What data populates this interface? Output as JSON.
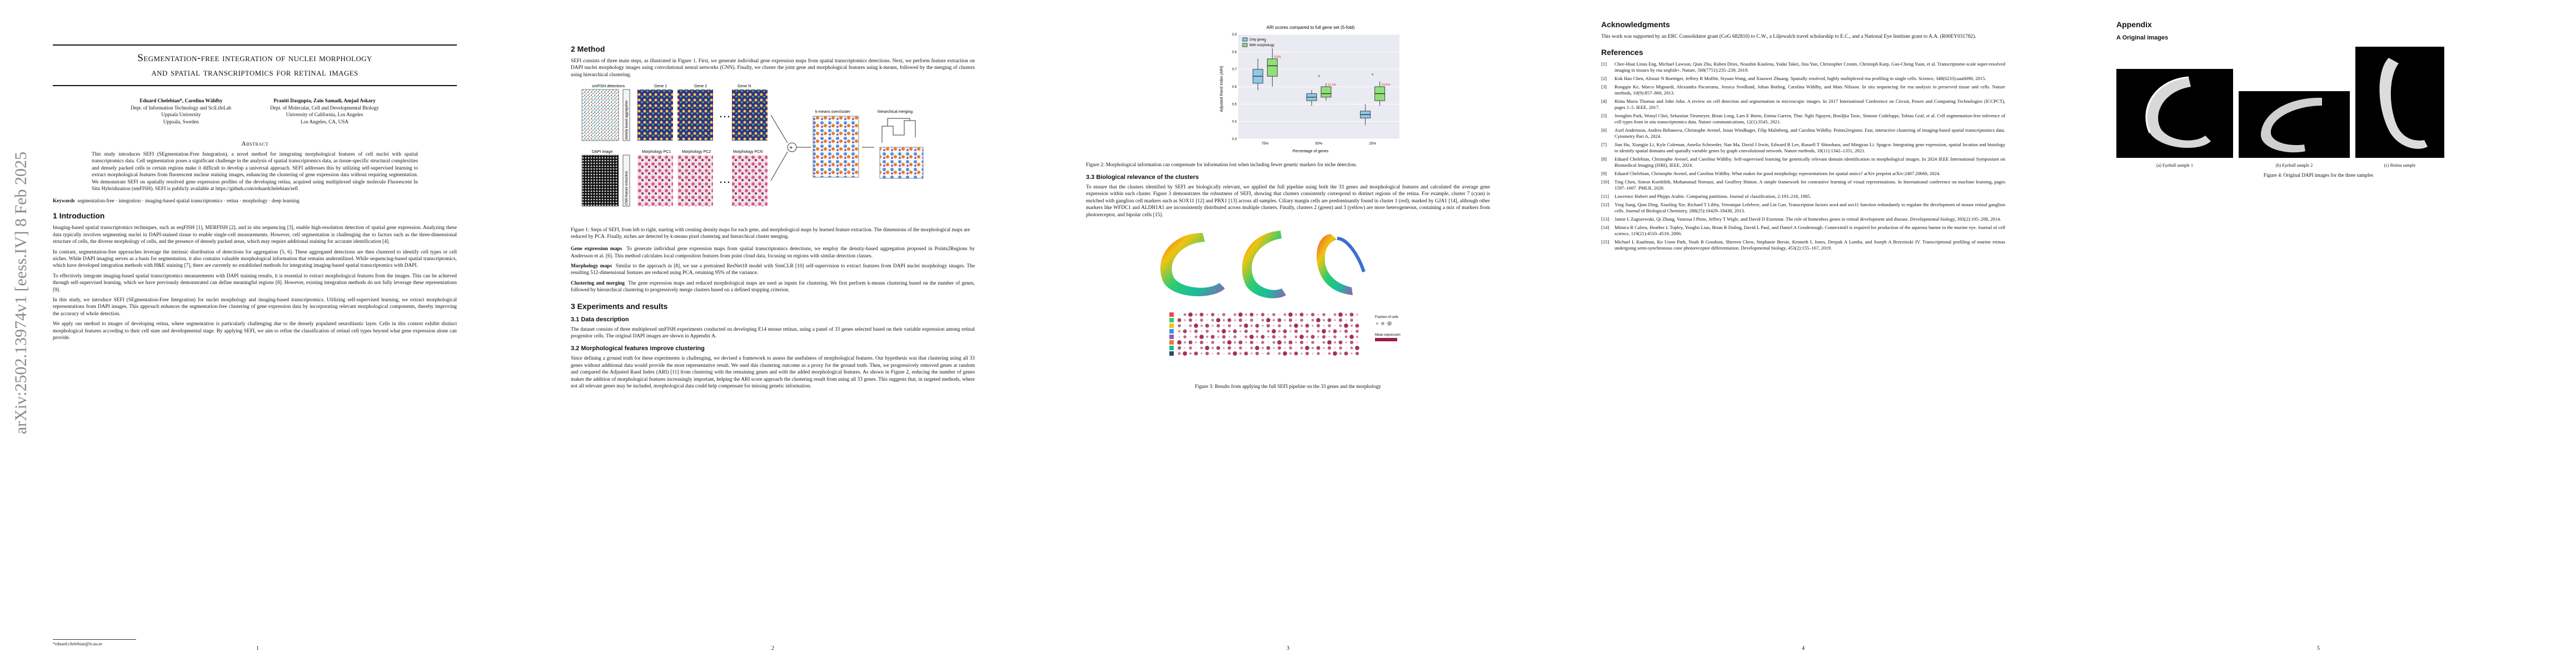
{
  "arxiv_stamp": "arXiv:2502.13974v1  [eess.IV]  8 Feb 2025",
  "title_line1": "Segmentation-free integration of nuclei morphology",
  "title_line2": "and spatial transcriptomics for retinal images",
  "authors": [
    {
      "names": "Eduard Chelebian*, Carolina Wählby",
      "affil1": "Dept. of Information Technology and SciLifeLab",
      "affil2": "Uppsala University",
      "affil3": "Uppsala, Sweden"
    },
    {
      "names": "Praniti Dasgupta, Zain Samadi, Amjad Askary",
      "affil1": "Dept. of Molecular, Cell and Developmental Biology",
      "affil2": "University of California, Los Angeles",
      "affil3": "Los Angeles, CA, USA"
    }
  ],
  "abstract_heading": "Abstract",
  "abstract": "This study introduces SEFI (SEgmentation-Free Integration), a novel method for integrating morphological features of cell nuclei with spatial transcriptomics data. Cell segmentation poses a significant challenge in the analysis of spatial transcriptomics data, as tissue-specific structural complexities and densely packed cells in certain regions make it difficult to develop a universal approach. SEFI addresses this by utilizing self-supervised learning to extract morphological features from fluorescent nuclear staining images, enhancing the clustering of gene expression data without requiring segmentation. We demonstrate SEFI on spatially resolved gene expression profiles of the developing retina, acquired using multiplexed single molecule Fluorescent In Situ Hybridization (smFISH). SEFI is publicly available at https://github.com/eduardchelebian/sefi",
  "keywords_label": "Keywords",
  "keywords": "segmentation-free · integration · imaging-based spatial transcriptomics · retina · morphology · deep learning",
  "sec1_title": "1   Introduction",
  "intro": [
    "Imaging-based spatial transcriptomics techniques, such as seqFISH [1], MERFISH [2], and in situ sequencing [3], enable high-resolution detection of spatial gene expression. Analyzing these data typically involves segmenting nuclei in DAPI-stained tissue to enable single-cell measurements. However, cell segmentation is challenging due to factors such as the three-dimensional structure of cells, the diverse morphology of cells, and the presence of densely packed areas, which may require additional staining for accurate identification [4].",
    "In contrast, segmentation-free approaches leverage the intrinsic distribution of detections for aggregation [5, 6]. These aggregated detections are then clustered to identify cell types or cell niches. While DAPI imaging serves as a basis for segmentation, it also contains valuable morphological information that remains underutilized. While sequencing-based spatial transcriptomics, which have developed integration methods with H&E staining [7], there are currently no established methods for integrating imaging-based spatial transcriptomics with DAPI.",
    "To effectively integrate imaging-based spatial transcriptomics measurements with DAPI staining results, it is essential to extract morphological features from the images. This can be achieved through self-supervised learning, which we have previously demonstrated can define meaningful regions [8]. However, existing integration methods do not fully leverage these representations [9].",
    "In this study, we introduce SEFI (SEgmentation-Free Integration) for nuclei morphology and imaging-based transcriptomics. Utilizing self-supervised learning, we extract morphological representations from DAPI images. This approach enhances the segmentation-free clustering of gene expression data by incorporating relevant morphological components, thereby improving the accuracy of whole detection.",
    "We apply our method to images of developing retina, where segmentation is particularly challenging due to the densely populated neuroblastic layer. Cells in this context exhibit distinct morphological features according to their cell state and developmental stage. By applying SEFI, we aim to refine the classification of retinal cell types beyond what gene expression alone can provide."
  ],
  "footnote": "*eduard.chelebian@it.uu.se",
  "page_numbers": [
    "1",
    "2",
    "3",
    "4",
    "5"
  ],
  "sec2_title": "2   Method",
  "method_intro": "SEFI consists of three main steps, as illustrated in Figure 1. First, we generate individual gene expression maps from spatial transcriptomics detections. Next, we perform feature extraction on DAPI nuclei morphology images using convolutional neural networks (CNN). Finally, we cluster the joint gene and morphological features using k-means, followed by the merging of clusters using hierarchical clustering.",
  "fig1": {
    "labels": [
      "smFISH detections",
      "Gene 1",
      "Gene 2",
      "Gene N",
      "DAPI image",
      "Morphology PC1",
      "Morphology PC2",
      "Morphology PCN",
      "k-means overcluster",
      "hierarchical merging",
      "density based aggregation",
      "CNN feature extraction"
    ],
    "caption": "Figure 1: Steps of SEFI, from left to right, starting with creating density maps for each gene, and morphological maps by learned feature extraction. The dimensions of the morphological maps are reduced by PCA. Finally, niches are detected by k-means pixel clustering and hierarchical cluster merging."
  },
  "method_paras": [
    {
      "lead": "Gene expression maps",
      "text": "To generate individual gene expression maps from spatial transcriptomics detections, we employ the density-based aggregation proposed in Points2Regions by Andersson et al. [6]. This method calculates local composition features from point cloud data, focusing on regions with similar detection classes."
    },
    {
      "lead": "Morphology maps",
      "text": "Similar to the approach in [8], we use a pretrained ResNet18 model with SimCLR [10] self-supervision to extract features from DAPI nuclei morphology images. The resulting 512-dimensional features are reduced using PCA, retaining 95% of the variance."
    },
    {
      "lead": "Clustering and merging",
      "text": "The gene expression maps and reduced morphological maps are used as inputs for clustering. We first perform k-means clustering based on the number of genes, followed by hierarchical clustering to progressively merge clusters based on a defined stopping criterion."
    }
  ],
  "sec3_title": "3   Experiments and results",
  "sec31_title": "3.1   Data description",
  "data_desc": "The dataset consists of three multiplexed smFISH experiments conducted on developing E14 mouse retinas, using a panel of 33 genes selected based on their variable expression among retinal progenitor cells. The original DAPI images are shown in Appendix A.",
  "sec32_title": "3.2   Morphological features improve clustering",
  "morph_improve": "Since defining a ground truth for these experiments is challenging, we devised a framework to assess the usefulness of morphological features. Our hypothesis was that clustering using all 33 genes without additional data would provide the most representative result. We used this clustering outcome as a proxy for the ground truth. Then, we progressively removed genes at random and compared the Adjusted Rand Index (ARI) [11] from clustering with the remaining genes and with the added morphological features. As shown in Figure 2, reducing the number of genes makes the addition of morphological features increasingly important, helping the ARI score approach the clustering result from using all 33 genes. This suggests that, in targeted methods, where not all relevant genes may be included, morphological data could help compensate for missing genetic information.",
  "chart_data": {
    "type": "box",
    "title": "ARI scores compared to full gene set (5-fold)",
    "xlabel": "Percentage of genes",
    "ylabel": "Adjusted Rand Index (ARI)",
    "categories": [
      "75%",
      "50%",
      "25%"
    ],
    "ylim": [
      0.3,
      0.9
    ],
    "yticks": [
      0.3,
      0.4,
      0.5,
      0.6,
      0.7,
      0.8,
      0.9
    ],
    "legend": [
      "Only genes",
      "With morphology"
    ],
    "series": [
      {
        "name": "Only genes",
        "color": "#8ecae6",
        "boxes": [
          {
            "min": 0.58,
            "q1": 0.62,
            "median": 0.66,
            "q3": 0.7,
            "max": 0.76
          },
          {
            "min": 0.49,
            "q1": 0.52,
            "median": 0.54,
            "q3": 0.56,
            "max": 0.58
          },
          {
            "min": 0.38,
            "q1": 0.42,
            "median": 0.44,
            "q3": 0.46,
            "max": 0.5
          }
        ]
      },
      {
        "name": "With morphology",
        "color": "#90e07a",
        "boxes": [
          {
            "min": 0.6,
            "q1": 0.66,
            "median": 0.72,
            "q3": 0.76,
            "max": 0.82
          },
          {
            "min": 0.52,
            "q1": 0.54,
            "median": 0.56,
            "q3": 0.6,
            "max": 0.62
          },
          {
            "min": 0.49,
            "q1": 0.52,
            "median": 0.56,
            "q3": 0.6,
            "max": 0.63
          }
        ]
      }
    ],
    "annotations": [
      "*",
      "*",
      "*",
      "9.6%",
      "11.1%",
      "23.5%"
    ]
  },
  "fig2_caption": "Figure 2: Morphological information can compensate for information lost when including fewer genetic markers for niche detection.",
  "sec33_title": "3.3   Biological relevance of the clusters",
  "bio_relevance": "To ensure that the clusters identified by SEFI are biologically relevant, we applied the full pipeline using both the 33 genes and morphological features and calculated the average gene expression within each cluster. Figure 3 demonstrates the robustness of SEFI, showing that clusters consistently correspond to distinct regions of the retina. For example, cluster 7 (cyan) is enriched with ganglion cell markers such as SOX11 [12] and PBX1 [13] across all samples. Ciliary margin cells are predominantly found in cluster 1 (red), marked by GJA1 [14], although other markers like WFDC1 and ALDH1A1 are inconsistently distributed across multiple clusters. Finally, clusters 2 (green) and 3 (yellow) are more heterogeneous, containing a mix of markers from photoreceptor, and bipolar cells [15].",
  "fig3_caption": "Figure 3: Results from applying the full SEFI pipeline on the 33 genes and the morphology",
  "fig3_legend_title": "Fraction of cells",
  "fig3_legend2_title": "Mean expression",
  "ack_title": "Acknowledgments",
  "ack_text": "This work was supported by an ERC Consolidator grant (CoG 682810) to C.W., a Liljewalch travel scholarship to E.C., and a National Eye Institute grant to A.A. (R00EY031782).",
  "refs_title": "References",
  "references": [
    {
      "n": "[1]",
      "t": "Chee-Huat Linus Eng, Michael Lawson, Qian Zhu, Ruben Dries, Noushin Koulena, Yodai Takei, Jina Yun, Christopher Cronin, Christoph Karp, Guo-Cheng Yuan, et al. Transcriptome-scale super-resolved imaging in tissues by rna seqfish+. Nature, 568(7751):235–239, 2019."
    },
    {
      "n": "[2]",
      "t": "Kok Hao Chen, Alistair N Boettiger, Jeffrey R Moffitt, Siyuan Wang, and Xiaowei Zhuang. Spatially resolved, highly multiplexed rna profiling in single cells. Science, 348(6233):aaa6090, 2015."
    },
    {
      "n": "[3]",
      "t": "Rongqin Ke, Marco Mignardi, Alexandra Pacureanu, Jessica Svedlund, Johan Botling, Carolina Wählby, and Mats Nilsson. In situ sequencing for rna analysis in preserved tissue and cells. Nature methods, 10(9):857–860, 2013."
    },
    {
      "n": "[4]",
      "t": "Rinta Maria Thomas and John John. A review on cell detection and segmentation in microscopic images. In 2017 International Conference on Circuit, Power and Computing Technologies (ICCPCT), pages 1–5. IEEE, 2017."
    },
    {
      "n": "[5]",
      "t": "Jeongbin Park, Wonyl Choi, Sebastian Tiesmeyer, Brian Long, Lars E Borm, Emma Garren, Thuc Nghi Nguyen, Bosiljka Tasic, Simone Codeluppi, Tobias Graf, et al. Cell segmentation-free inference of cell types from in situ transcriptomics data. Nature communications, 12(1):3545, 2021."
    },
    {
      "n": "[6]",
      "t": "Axel Andersson, Andrea Behanova, Christophe Avenel, Jonas Windhager, Filip Malmberg, and Carolina Wählby. Points2regions: Fast, interactive clustering of imaging-based spatial transcriptomics data. Cytometry Part A, 2024."
    },
    {
      "n": "[7]",
      "t": "Jian Hu, Xiangjie Li, Kyle Coleman, Amelia Schroeder, Nan Ma, David J Irwin, Edward B Lee, Russell T Shinohara, and Mingyao Li. Spagcn: Integrating gene expression, spatial location and histology to identify spatial domains and spatially variable genes by graph convolutional network. Nature methods, 18(11):1342–1351, 2021."
    },
    {
      "n": "[8]",
      "t": "Eduard Chelebian, Christophe Avenel, and Carolina Wählby. Self-supervised learning for genetically relevant domain identification in morphological images. In 2024 IEEE International Symposium on Biomedical Imaging (ISBI), IEEE, 2024."
    },
    {
      "n": "[9]",
      "t": "Eduard Chelebian, Christophe Avenel, and Carolina Wählby. What makes for good morphology representations for spatial omics? arXiv preprint arXiv:2407.20660, 2024."
    },
    {
      "n": "[10]",
      "t": "Ting Chen, Simon Kornblith, Mohammad Norouzi, and Geoffrey Hinton. A simple framework for contrastive learning of visual representations. In International conference on machine learning, pages 1597–1607. PMLR, 2020."
    },
    {
      "n": "[11]",
      "t": "Lawrence Hubert and Phipps Arabie. Comparing partitions. Journal of classification, 2:193–218, 1985."
    },
    {
      "n": "[12]",
      "t": "Ying Jiang, Qian Ding, Xiaoling Xie, Richard T Libby, Veronique Lefebvre, and Lin Gan. Transcription factors sox4 and sox11 function redundantly to regulate the development of mouse retinal ganglion cells. Journal of Biological Chemistry, 288(25):18429–18438, 2013."
    },
    {
      "n": "[13]",
      "t": "Jamie L Zagozewski, Qi Zhang, Vanessa I Pinto, Jeffrey T Wigle, and David D Eisenstat. The role of homeobox genes in retinal development and disease. Developmental biology, 393(2):195–208, 2014."
    },
    {
      "n": "[14]",
      "t": "Mónica R Calera, Heather L Topley, Yongbo Liao, Brian R Duling, David L Paul, and Daniel A Goodenough. Connexin43 is required for production of the aqueous humor in the murine eye. Journal of cell science, 119(21):4510–4519, 2006."
    },
    {
      "n": "[15]",
      "t": "Michael L Kaufman, Ko Uoon Park, Noah B Goodson, Shereen Chew, Stephanie Bersie, Kenneth L Jones, Deepak A Lamba, and Joseph A Brzezinski IV. Transcriptional profiling of murine retinas undergoing semi-synchronous cone photoreceptor differentiation. Developmental biology, 453(2):155–167, 2019."
    }
  ],
  "appendix_title": "Appendix",
  "appendix_sub": "A   Original images",
  "appendix_images": [
    "(a) Eyeball sample 1",
    "(b) Eyeball sample 2",
    "(c) Retina sample"
  ],
  "fig4_caption": "Figure 4: Original DAPI images for the three samples"
}
